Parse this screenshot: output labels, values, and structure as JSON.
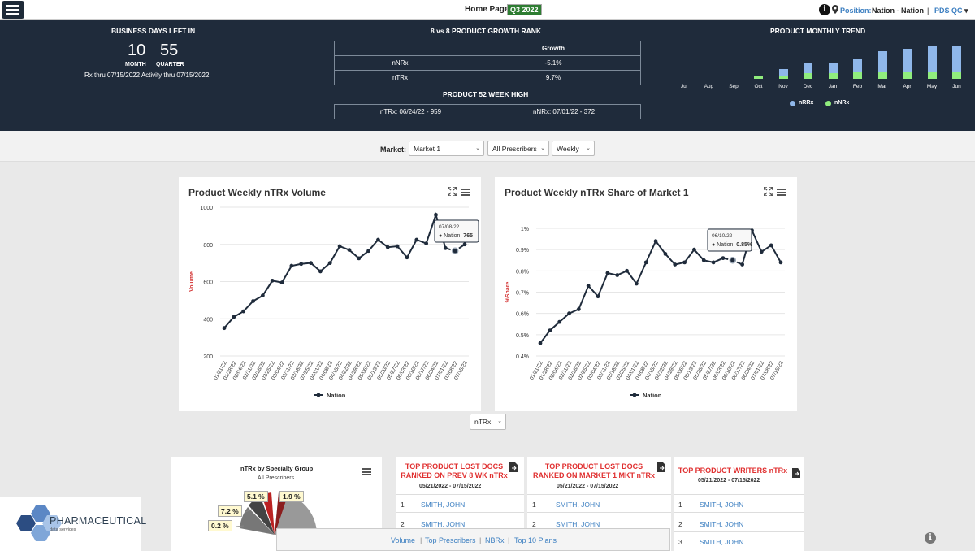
{
  "topbar": {
    "page": "Home Page",
    "quarter_badge": "Q3 2022",
    "position_label": "Position:",
    "position_value": "Nation - Nation",
    "separator": "|",
    "user": "PDS QC",
    "info_glyph": "i",
    "icons": [
      "hamburger-menu-icon",
      "info-icon",
      "location-pin-icon",
      "caret-down-icon"
    ]
  },
  "business_days": {
    "title": "BUSINESS DAYS LEFT IN",
    "month_value": "10",
    "month_label": "MONTH",
    "quarter_value": "55",
    "quarter_label": "QUARTER",
    "rx_thru": "Rx thru 07/15/2022 Activity thru 07/15/2022"
  },
  "growth_rank": {
    "title": "8 vs 8 PRODUCT GROWTH RANK",
    "header": "Growth",
    "rows": [
      {
        "label": "nNRx",
        "value": "-5.1%"
      },
      {
        "label": "nTRx",
        "value": "9.7%"
      }
    ]
  },
  "week52": {
    "title": "PRODUCT 52 WEEK HIGH",
    "ntrx": "nTRx: 06/24/22 - 959",
    "nnrx": "nNRx: 07/01/22 - 372"
  },
  "monthly_trend": {
    "title": "PRODUCT MONTHLY TREND",
    "legend": [
      {
        "label": "nRRx",
        "color": "#8fb7ea"
      },
      {
        "label": "nNRx",
        "color": "#90ed7d"
      }
    ]
  },
  "filters": {
    "market_label": "Market:",
    "market": "Market 1",
    "prescribers": "All Prescribers",
    "period": "Weekly",
    "metric": "nTRx"
  },
  "charts": {
    "volume": {
      "title": "Product Weekly nTRx Volume",
      "ylabel": "Volume",
      "legend": "Nation",
      "tooltip_date": "07/08/22",
      "tooltip_series": "Nation:",
      "tooltip_value": "765"
    },
    "share": {
      "title": "Product Weekly nTRx Share of Market 1",
      "ylabel": "%Share",
      "legend": "Nation",
      "tooltip_date": "06/10/22",
      "tooltip_series": "Nation:",
      "tooltip_value": "0.85%"
    }
  },
  "chart_data": [
    {
      "type": "bar",
      "title": "PRODUCT MONTHLY TREND",
      "categories": [
        "Jul",
        "Aug",
        "Sep",
        "Oct",
        "Nov",
        "Dec",
        "Jan",
        "Feb",
        "Mar",
        "Apr",
        "May",
        "Jun"
      ],
      "series": [
        {
          "name": "nRRx",
          "values": [
            0,
            0,
            0,
            0,
            14,
            24,
            22,
            30,
            48,
            53,
            58,
            58
          ]
        },
        {
          "name": "nNRx",
          "values": [
            0,
            0,
            0,
            5,
            8,
            12,
            12,
            14,
            14,
            14,
            14,
            14
          ]
        }
      ]
    },
    {
      "type": "line",
      "title": "Product Weekly nTRx Volume",
      "ylabel": "Volume",
      "ylim": [
        200,
        1000
      ],
      "yticks": [
        200,
        400,
        600,
        800,
        1000
      ],
      "x": [
        "01/21/22",
        "01/28/22",
        "02/04/22",
        "02/11/22",
        "02/18/22",
        "02/25/22",
        "03/04/22",
        "03/11/22",
        "03/18/22",
        "03/25/22",
        "04/01/22",
        "04/08/22",
        "04/15/22",
        "04/22/22",
        "04/29/22",
        "05/06/22",
        "05/13/22",
        "05/20/22",
        "05/27/22",
        "06/03/22",
        "06/10/22",
        "06/17/22",
        "06/24/22",
        "07/01/22",
        "07/08/22",
        "07/15/22"
      ],
      "series": [
        {
          "name": "Nation",
          "values": [
            350,
            410,
            440,
            495,
            525,
            605,
            595,
            685,
            695,
            700,
            655,
            700,
            790,
            770,
            725,
            765,
            825,
            785,
            790,
            730,
            825,
            805,
            959,
            780,
            765,
            800
          ]
        }
      ]
    },
    {
      "type": "line",
      "title": "Product Weekly nTRx Share of Market 1",
      "ylabel": "%Share",
      "ylim": [
        0.4,
        1.0
      ],
      "yticks": [
        "0.4%",
        "0.5%",
        "0.6%",
        "0.7%",
        "0.8%",
        "0.9%",
        "1%"
      ],
      "x": [
        "01/21/22",
        "01/28/22",
        "02/04/22",
        "02/11/22",
        "02/18/22",
        "02/25/22",
        "03/04/22",
        "03/11/22",
        "03/18/22",
        "03/25/22",
        "04/01/22",
        "04/08/22",
        "04/15/22",
        "04/22/22",
        "04/29/22",
        "05/06/22",
        "05/13/22",
        "05/20/22",
        "05/27/22",
        "06/03/22",
        "06/10/22",
        "06/17/22",
        "06/24/22",
        "07/01/22",
        "07/08/22",
        "07/15/22"
      ],
      "series": [
        {
          "name": "Nation",
          "values": [
            0.46,
            0.52,
            0.56,
            0.6,
            0.62,
            0.73,
            0.68,
            0.79,
            0.78,
            0.8,
            0.74,
            0.84,
            0.94,
            0.88,
            0.83,
            0.84,
            0.9,
            0.85,
            0.84,
            0.86,
            0.85,
            0.83,
            0.99,
            0.89,
            0.92,
            0.84
          ]
        }
      ]
    },
    {
      "type": "pie",
      "title": "nTRx by Specialty Group",
      "subtitle": "All Prescribers",
      "labels": [
        "1.9 %",
        "5.1 %",
        "7.2 %",
        "0.2 %"
      ]
    }
  ],
  "lists": [
    {
      "title_line1": "TOP PRODUCT LOST DOCS",
      "title_line2": "RANKED ON PREV 8 WK nTRx",
      "dates": "05/21/2022 - 07/15/2022",
      "rows": [
        {
          "n": "1",
          "name": "SMITH, JOHN"
        },
        {
          "n": "2",
          "name": "SMITH, JOHN"
        }
      ]
    },
    {
      "title_line1": "TOP PRODUCT LOST DOCS",
      "title_line2": "RANKED ON MARKET 1 MKT nTRx",
      "dates": "05/21/2022 - 07/15/2022",
      "rows": [
        {
          "n": "1",
          "name": "SMITH, JOHN"
        },
        {
          "n": "2",
          "name": "SMITH, JOHN"
        }
      ]
    },
    {
      "title_line1": "TOP PRODUCT WRITERS nTRx",
      "title_line2": "",
      "dates": "05/21/2022 - 07/15/2022",
      "rows": [
        {
          "n": "1",
          "name": "SMITH, JOHN"
        },
        {
          "n": "2",
          "name": "SMITH, JOHN"
        },
        {
          "n": "3",
          "name": "SMITH, JOHN"
        }
      ]
    }
  ],
  "bottom_nav": [
    "Volume",
    "Top Prescribers",
    "NBRx",
    "Top 10 Plans"
  ],
  "bottom_nav_sep": "|",
  "logo": {
    "name": "PHARMACEUTICAL",
    "sub": "data services"
  },
  "bottom_info_glyph": "i"
}
